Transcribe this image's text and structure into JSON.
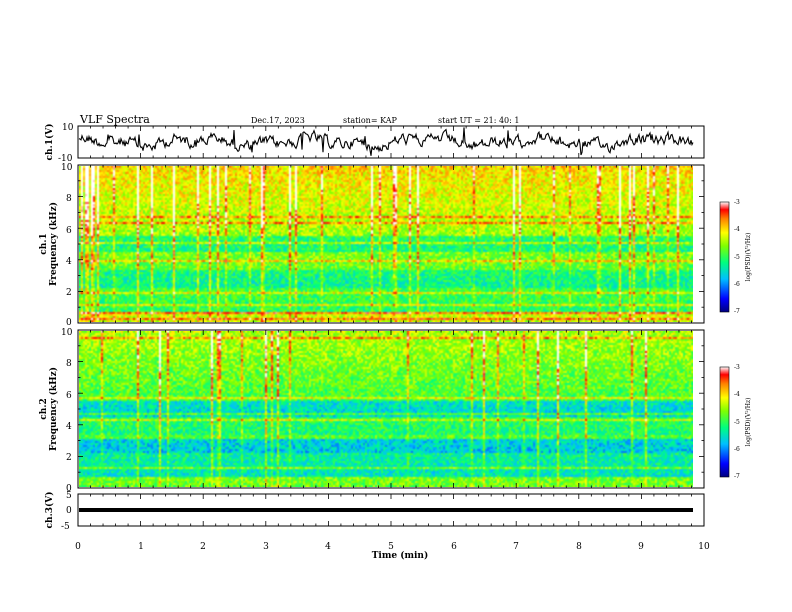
{
  "header": {
    "title": "VLF Spectra",
    "date": "Dec.17, 2023",
    "station": "station= KAP",
    "start_time": "start  UT =   21: 40: 1"
  },
  "chart_data": [
    {
      "type": "line",
      "panel": "ch1-waveform",
      "ylabel": "ch.1(V)",
      "ylim": [
        -10,
        10
      ],
      "yticks": [
        "10",
        "-10"
      ],
      "xlim": [
        0,
        10
      ]
    },
    {
      "type": "heatmap",
      "panel": "ch1-spectrogram",
      "ylabel": "ch.1\nFrequency (kHz)",
      "ylim": [
        0,
        10
      ],
      "yticks": [
        "0",
        "2",
        "4",
        "6",
        "8",
        "10"
      ],
      "xlim": [
        0,
        10
      ],
      "colorbar": {
        "label": "log(PSD)(V²/Hz)",
        "range": [
          -7,
          -3
        ],
        "ticks": [
          "-3",
          "-4",
          "-5",
          "-6",
          "-7"
        ]
      }
    },
    {
      "type": "heatmap",
      "panel": "ch2-spectrogram",
      "ylabel": "ch.2\nFrequency (kHz)",
      "ylim": [
        0,
        10
      ],
      "yticks": [
        "0",
        "2",
        "4",
        "6",
        "8",
        "10"
      ],
      "xlim": [
        0,
        10
      ],
      "colorbar": {
        "label": "log(PSD)(V²/Hz)",
        "range": [
          -7,
          -3
        ],
        "ticks": [
          "-3",
          "-4",
          "-5",
          "-6",
          "-7"
        ]
      }
    },
    {
      "type": "line",
      "panel": "ch3-waveform",
      "ylabel": "ch.3(V)",
      "ylim": [
        -5,
        5
      ],
      "yticks": [
        "5",
        "0",
        "-5"
      ],
      "xlim": [
        0,
        10
      ],
      "xlabel": "Time  (min)",
      "xticks": [
        "0",
        "1",
        "2",
        "3",
        "4",
        "5",
        "6",
        "7",
        "8",
        "9",
        "10"
      ]
    }
  ],
  "labels": {
    "ch1_y_top": "ch.1",
    "ch1_y_bottom": "Frequency (kHz)",
    "ch2_y_top": "ch.2",
    "ch2_y_bottom": "Frequency (kHz)",
    "cb_label": "log(PSD)(V²/Hz)"
  }
}
